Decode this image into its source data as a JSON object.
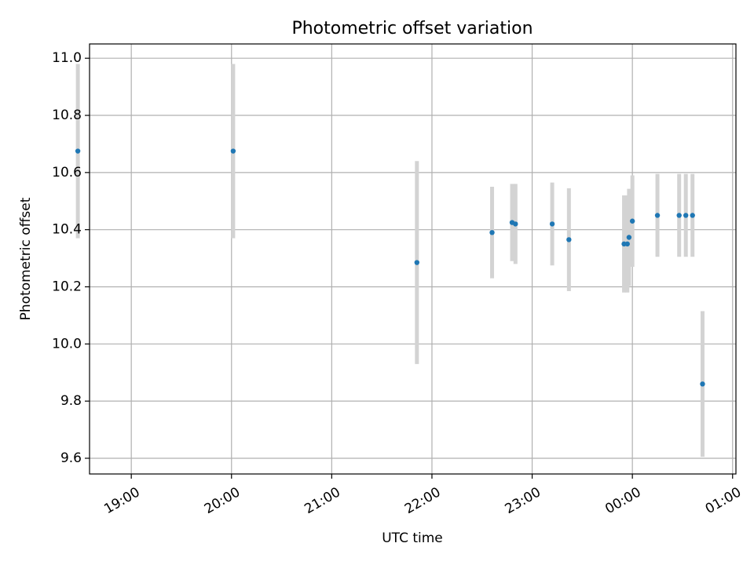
{
  "chart_data": {
    "type": "scatter",
    "title": "Photometric offset variation",
    "xlabel": "UTC time",
    "ylabel": "Photometric offset",
    "x_axis_type": "time",
    "xlim": [
      "18:35",
      "01:02"
    ],
    "ylim": [
      9.545,
      11.05
    ],
    "x_ticks": [
      "19:00",
      "20:00",
      "21:00",
      "22:00",
      "23:00",
      "00:00",
      "01:00"
    ],
    "y_ticks": [
      9.6,
      9.8,
      10.0,
      10.2,
      10.4,
      10.6,
      10.8,
      11.0
    ],
    "y_tick_labels": [
      "9.6",
      "9.8",
      "10.0",
      "10.2",
      "10.4",
      "10.6",
      "10.8",
      "11.0"
    ],
    "grid": true,
    "marker_color": "#1f77b4",
    "errorbar_color": "#d3d3d3",
    "points": [
      {
        "time": "18:28",
        "y": 10.675,
        "yerr": 0.305
      },
      {
        "time": "20:01",
        "y": 10.675,
        "yerr": 0.305
      },
      {
        "time": "21:51",
        "y": 10.285,
        "yerr": 0.355
      },
      {
        "time": "22:36",
        "y": 10.39,
        "yerr": 0.16
      },
      {
        "time": "22:48",
        "y": 10.425,
        "yerr": 0.135
      },
      {
        "time": "22:50",
        "y": 10.42,
        "yerr": 0.14
      },
      {
        "time": "23:12",
        "y": 10.42,
        "yerr": 0.145
      },
      {
        "time": "23:22",
        "y": 10.365,
        "yerr": 0.18
      },
      {
        "time": "23:55",
        "y": 10.35,
        "yerr": 0.17
      },
      {
        "time": "23:57",
        "y": 10.35,
        "yerr": 0.17
      },
      {
        "time": "23:58",
        "y": 10.373,
        "yerr": 0.17
      },
      {
        "time": "00:00",
        "y": 10.43,
        "yerr": 0.16
      },
      {
        "time": "00:15",
        "y": 10.45,
        "yerr": 0.145
      },
      {
        "time": "00:28",
        "y": 10.45,
        "yerr": 0.145
      },
      {
        "time": "00:32",
        "y": 10.45,
        "yerr": 0.145
      },
      {
        "time": "00:36",
        "y": 10.45,
        "yerr": 0.145
      },
      {
        "time": "00:42",
        "y": 9.86,
        "yerr": 0.255
      }
    ]
  }
}
